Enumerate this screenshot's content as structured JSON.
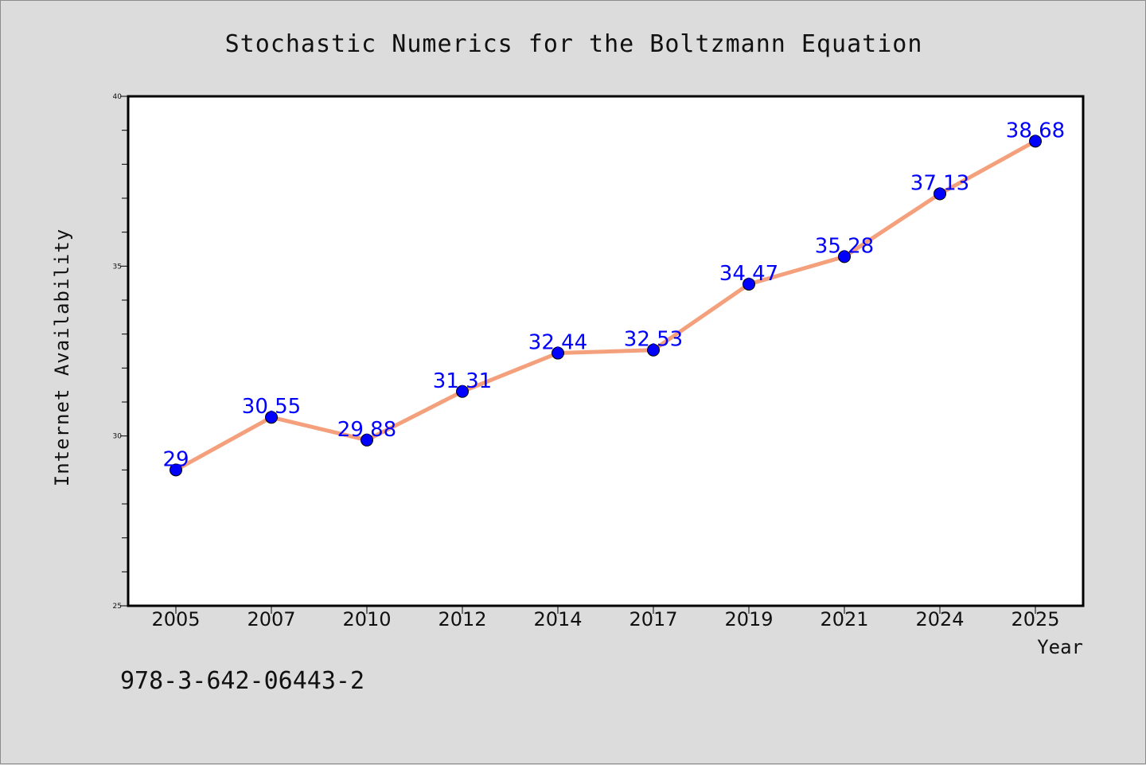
{
  "colors": {
    "line": "#f4a07c",
    "marker": "#0000ff",
    "label": "#0000ff",
    "axes": "#000000",
    "plot_background": "#ffffff",
    "page_background": "#dcdcdc"
  },
  "footer": {
    "isbn": "978-3-642-06443-2"
  },
  "chart_data": {
    "type": "line",
    "title": "Stochastic Numerics for the Boltzmann Equation",
    "xlabel": "Year",
    "ylabel": "Internet Availability",
    "categories": [
      "2005",
      "2007",
      "2010",
      "2012",
      "2014",
      "2017",
      "2019",
      "2021",
      "2024",
      "2025"
    ],
    "series": [
      {
        "values": [
          29,
          30.55,
          29.88,
          31.31,
          32.44,
          32.53,
          34.47,
          35.28,
          37.13,
          38.68
        ],
        "labels": [
          "29",
          "30.55",
          "29.88",
          "31.31",
          "32.44",
          "32.53",
          "34.47",
          "35.28",
          "37.13",
          "38.68"
        ]
      }
    ],
    "ylim": [
      25,
      40
    ],
    "yticks_major": [
      25,
      30,
      35,
      40
    ],
    "yticks_minor_step": 1,
    "grid": false,
    "legend": "none",
    "markers": "circle"
  }
}
